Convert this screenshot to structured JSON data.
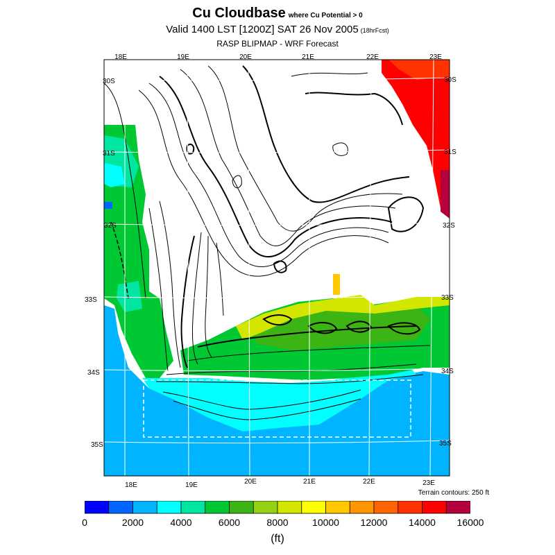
{
  "header": {
    "title": "Cu Cloudbase",
    "title_suffix": "where Cu Potential > 0",
    "valid": "Valid 1400 LST [1200Z] SAT 26 Nov 2005",
    "valid_suffix": "(18hrFcst)",
    "model": "RASP BLIPMAP - WRF Forecast"
  },
  "map": {
    "top_lon_labels": [
      "18E",
      "19E",
      "20E",
      "21E",
      "22E",
      "23E"
    ],
    "bottom_lon_labels": [
      "18E",
      "19E",
      "20E",
      "21E",
      "22E",
      "23E"
    ],
    "left_lat_labels": [
      "30S",
      "31S",
      "32S",
      "33S",
      "34S",
      "35S"
    ],
    "right_lat_labels": [
      "30S",
      "31S",
      "32S",
      "33S",
      "34S",
      "35S"
    ],
    "terrain_note": "Terrain contours: 250 ft"
  },
  "colorbar": {
    "colors": [
      "#0000ff",
      "#0064ff",
      "#00b4ff",
      "#00ffff",
      "#00e6a0",
      "#00c832",
      "#3cb414",
      "#96d214",
      "#d2e600",
      "#ffff00",
      "#ffc800",
      "#ff9600",
      "#ff6400",
      "#ff3200",
      "#ff0000",
      "#b4003c"
    ],
    "tick_labels": [
      "0",
      "2000",
      "4000",
      "6000",
      "8000",
      "10000",
      "12000",
      "14000",
      "16000"
    ],
    "units": "(ft)"
  }
}
